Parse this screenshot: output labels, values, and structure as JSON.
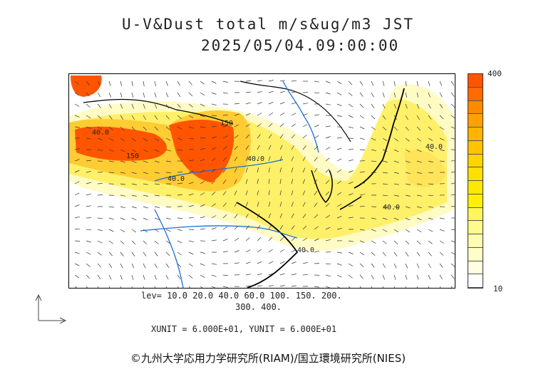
{
  "title": {
    "line1": "U-V&Dust total m/s&ug/m3 JST",
    "line2": "2025/05/04.09:00:00"
  },
  "colorbar": {
    "max_label": "400",
    "min_label": "10",
    "colors": [
      "#ff5500",
      "#ff6a00",
      "#ff8a00",
      "#ffa200",
      "#ffb400",
      "#ffc400",
      "#ffd400",
      "#ffe000",
      "#ffe800",
      "#fff000",
      "#fff65a",
      "#fffa8c",
      "#fffcb0",
      "#fffdc8",
      "#fffee0",
      "#ffffff"
    ]
  },
  "levels": {
    "line1": "lev= 10.0 20.0 40.0 60.0 100. 150. 200.",
    "line2": "300. 400."
  },
  "units": "XUNIT = 6.000E+01, YUNIT = 6.000E+01",
  "credit": "©九州大学応用力学研究所(RIAM)/国立環境研究所(NIES)",
  "contour_labels": [
    "40.0",
    "150",
    "40.0",
    "150",
    "40.0",
    "40.0",
    "40.0",
    "40.0"
  ],
  "colors": {
    "river": "#1a6fd6",
    "coast": "#000000",
    "heavy": "#ff5500",
    "medium": "#ffcc33",
    "light": "#fff066",
    "faint": "#fffab0"
  }
}
